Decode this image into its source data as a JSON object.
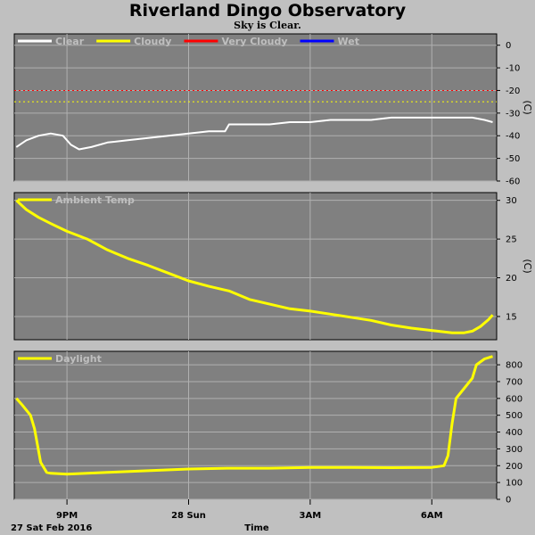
{
  "header": {
    "title": "Riverland Dingo Observatory",
    "subtitle": "Sky is Clear."
  },
  "x_axis": {
    "ticks": [
      {
        "label": "9PM",
        "t": 1.0
      },
      {
        "label": "28 Sun",
        "t": 4.0
      },
      {
        "label": "3AM",
        "t": 7.0
      },
      {
        "label": "6AM",
        "t": 10.0
      }
    ],
    "date_label": "27 Sat Feb 2016",
    "xlabel": "Time",
    "range": [
      -0.3,
      11.6
    ]
  },
  "colors": {
    "plot_bg": "#808080",
    "grid": "#b0b0b0",
    "clear": "#ffffff",
    "cloudy": "#ffff00",
    "very_cloudy": "#ff0000",
    "wet": "#0000ff",
    "temp": "#ffff00",
    "daylight": "#ffff00"
  },
  "chart_data": [
    {
      "type": "line",
      "ylabel": "(C)",
      "ylim": [
        -60,
        5
      ],
      "yticks": [
        0,
        -10,
        -20,
        -30,
        -40,
        -50,
        -60
      ],
      "legend": [
        "Clear",
        "Cloudy",
        "Very Cloudy",
        "Wet"
      ],
      "thresholds": [
        {
          "name": "Very Cloudy",
          "y": -20
        },
        {
          "name": "Cloudy",
          "y": -25
        }
      ],
      "series": [
        {
          "name": "Clear",
          "x": [
            -0.25,
            0.0,
            0.3,
            0.6,
            0.9,
            1.1,
            1.3,
            1.6,
            2.0,
            2.5,
            3.0,
            3.5,
            4.0,
            4.5,
            4.9,
            5.0,
            5.5,
            6.0,
            6.5,
            7.0,
            7.5,
            8.0,
            8.5,
            9.0,
            9.5,
            10.0,
            10.5,
            11.0,
            11.3,
            11.5
          ],
          "y": [
            -45,
            -42,
            -40,
            -39,
            -40,
            -44,
            -46,
            -45,
            -43,
            -42,
            -41,
            -40,
            -39,
            -38,
            -38,
            -35,
            -35,
            -35,
            -34,
            -34,
            -33,
            -33,
            -33,
            -32,
            -32,
            -32,
            -32,
            -32,
            -33,
            -34
          ]
        }
      ]
    },
    {
      "type": "line",
      "ylabel": "(C)",
      "ylim": [
        12,
        31
      ],
      "yticks": [
        30,
        25,
        20,
        15
      ],
      "legend": [
        "Ambient Temp"
      ],
      "series": [
        {
          "name": "Ambient Temp",
          "x": [
            -0.25,
            0.0,
            0.3,
            0.6,
            1.0,
            1.5,
            2.0,
            2.5,
            3.0,
            3.5,
            4.0,
            4.5,
            5.0,
            5.5,
            6.0,
            6.5,
            7.0,
            7.5,
            8.0,
            8.5,
            9.0,
            9.5,
            10.0,
            10.5,
            10.8,
            11.0,
            11.2,
            11.4,
            11.5
          ],
          "y": [
            30.0,
            28.8,
            27.8,
            27.0,
            26.0,
            25.0,
            23.6,
            22.5,
            21.6,
            20.6,
            19.6,
            18.9,
            18.3,
            17.2,
            16.6,
            16.0,
            15.7,
            15.3,
            14.9,
            14.5,
            13.9,
            13.5,
            13.2,
            12.9,
            12.9,
            13.1,
            13.7,
            14.6,
            15.2
          ]
        }
      ]
    },
    {
      "type": "line",
      "ylabel": "",
      "ylim": [
        0,
        880
      ],
      "yticks": [
        800,
        700,
        600,
        500,
        400,
        300,
        200,
        100,
        0
      ],
      "legend": [
        "Daylight"
      ],
      "series": [
        {
          "name": "Daylight",
          "x": [
            -0.25,
            -0.1,
            0.1,
            0.2,
            0.35,
            0.5,
            0.6,
            1.0,
            2.0,
            3.0,
            4.0,
            5.0,
            6.0,
            7.0,
            8.0,
            9.0,
            10.0,
            10.3,
            10.4,
            10.5,
            10.6,
            10.8,
            11.0,
            11.1,
            11.3,
            11.5
          ],
          "y": [
            600,
            560,
            500,
            420,
            220,
            160,
            155,
            150,
            160,
            170,
            180,
            185,
            185,
            190,
            190,
            188,
            190,
            200,
            260,
            450,
            600,
            660,
            720,
            800,
            835,
            850
          ]
        }
      ]
    }
  ]
}
